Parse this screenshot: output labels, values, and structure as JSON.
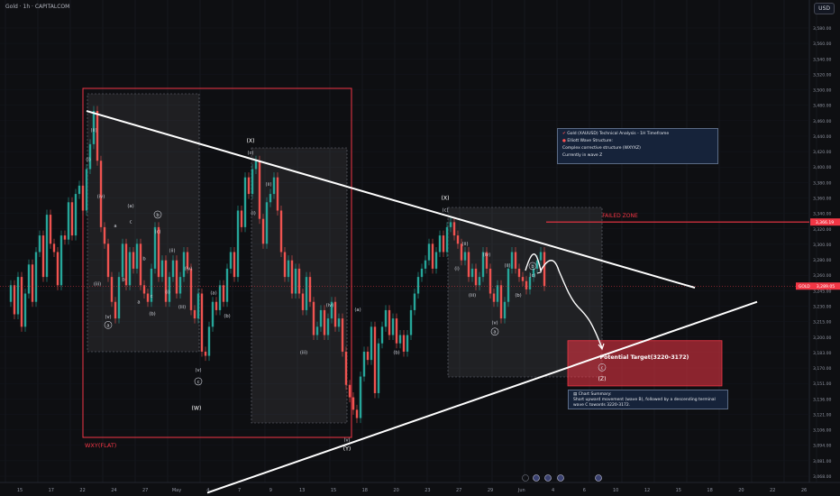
{
  "header": {
    "symbol_line": "Gold · 1h · CAPITALCOM",
    "currency_button": "USD"
  },
  "info_box": {
    "line1": "Gold (XAUUSD) Technical Analysis - 1H Timeframe",
    "line2": "Elliott Wave Structure:",
    "line3": "Complex corrective structure (WXYXZ)",
    "line4": "Currently in wave Z"
  },
  "summary_box": {
    "title": "Chart Summary:",
    "text": "Short upward movement (wave B), followed by a descending terminal wave C towards 3220-3172."
  },
  "colors": {
    "bg": "#0e0f12",
    "up": "#26a69a",
    "down": "#ef5350",
    "accent_red": "#f23645",
    "line": "#ffffff"
  },
  "chart_data": {
    "type": "candlestick",
    "title": "Gold · 1h · CAPITALCOM",
    "ylim": [
      3060,
      3600
    ],
    "y_ticks": [
      "3,580.00",
      "3,560.00",
      "3,540.00",
      "3,520.00",
      "3,500.00",
      "3,480.00",
      "3,460.00",
      "3,440.00",
      "3,420.00",
      "3,400.00",
      "3,380.00",
      "3,360.00",
      "3,340.00",
      "3,320.00",
      "3,300.00",
      "3,280.00",
      "3,260.00",
      "3,245.00",
      "3,230.00",
      "3,215.00",
      "3,200.00",
      "3,183.00",
      "3,170.00",
      "3,151.00",
      "3,136.00",
      "3,121.00",
      "3,106.00",
      "3,094.00",
      "3,081.00",
      "3,068.00"
    ],
    "x_ticks": [
      "15",
      "17",
      "22",
      "24",
      "27",
      "May",
      "4",
      "7",
      "9",
      "13",
      "15",
      "18",
      "20",
      "23",
      "27",
      "29",
      "Jun",
      "4",
      "6",
      "10",
      "12",
      "15",
      "18",
      "20",
      "22",
      "26"
    ],
    "price_labels": {
      "failed_zone": "3,366.19",
      "current": "3,289.05",
      "current_tag": "GOLD"
    },
    "price_path": [
      [
        0,
        3270
      ],
      [
        4,
        3290
      ],
      [
        8,
        3255
      ],
      [
        12,
        3300
      ],
      [
        16,
        3240
      ],
      [
        20,
        3280
      ],
      [
        24,
        3315
      ],
      [
        28,
        3270
      ],
      [
        32,
        3330
      ],
      [
        36,
        3350
      ],
      [
        40,
        3300
      ],
      [
        44,
        3375
      ],
      [
        48,
        3340
      ],
      [
        52,
        3330
      ],
      [
        56,
        3290
      ],
      [
        60,
        3350
      ],
      [
        64,
        3345
      ],
      [
        68,
        3390
      ],
      [
        72,
        3350
      ],
      [
        76,
        3400
      ],
      [
        80,
        3410
      ],
      [
        84,
        3380
      ],
      [
        88,
        3430
      ],
      [
        92,
        3460
      ],
      [
        96,
        3500
      ],
      [
        100,
        3440
      ],
      [
        104,
        3360
      ],
      [
        108,
        3340
      ],
      [
        112,
        3300
      ],
      [
        116,
        3270
      ],
      [
        120,
        3250
      ],
      [
        124,
        3300
      ],
      [
        128,
        3340
      ],
      [
        132,
        3290
      ],
      [
        136,
        3330
      ],
      [
        140,
        3310
      ],
      [
        144,
        3340
      ],
      [
        148,
        3290
      ],
      [
        152,
        3280
      ],
      [
        156,
        3270
      ],
      [
        160,
        3310
      ],
      [
        164,
        3360
      ],
      [
        168,
        3300
      ],
      [
        172,
        3320
      ],
      [
        176,
        3270
      ],
      [
        180,
        3300
      ],
      [
        184,
        3320
      ],
      [
        188,
        3280
      ],
      [
        192,
        3300
      ],
      [
        196,
        3330
      ],
      [
        200,
        3310
      ],
      [
        204,
        3260
      ],
      [
        208,
        3250
      ],
      [
        212,
        3280
      ],
      [
        216,
        3210
      ],
      [
        220,
        3205
      ],
      [
        224,
        3240
      ],
      [
        228,
        3270
      ],
      [
        232,
        3260
      ],
      [
        236,
        3290
      ],
      [
        240,
        3270
      ],
      [
        244,
        3310
      ],
      [
        248,
        3330
      ],
      [
        252,
        3300
      ],
      [
        256,
        3380
      ],
      [
        260,
        3360
      ],
      [
        264,
        3420
      ],
      [
        268,
        3400
      ],
      [
        272,
        3430
      ],
      [
        276,
        3440
      ],
      [
        280,
        3370
      ],
      [
        284,
        3340
      ],
      [
        288,
        3390
      ],
      [
        292,
        3400
      ],
      [
        296,
        3420
      ],
      [
        300,
        3380
      ],
      [
        304,
        3330
      ],
      [
        308,
        3300
      ],
      [
        312,
        3320
      ],
      [
        316,
        3280
      ],
      [
        320,
        3310
      ],
      [
        324,
        3280
      ],
      [
        328,
        3260
      ],
      [
        332,
        3300
      ],
      [
        336,
        3270
      ],
      [
        340,
        3230
      ],
      [
        344,
        3240
      ],
      [
        348,
        3260
      ],
      [
        352,
        3230
      ],
      [
        356,
        3250
      ],
      [
        360,
        3270
      ],
      [
        364,
        3240
      ],
      [
        368,
        3250
      ],
      [
        372,
        3210
      ],
      [
        376,
        3170
      ],
      [
        380,
        3155
      ],
      [
        384,
        3140
      ],
      [
        388,
        3130
      ],
      [
        392,
        3180
      ],
      [
        396,
        3210
      ],
      [
        400,
        3200
      ],
      [
        404,
        3240
      ],
      [
        408,
        3160
      ],
      [
        412,
        3220
      ],
      [
        416,
        3240
      ],
      [
        420,
        3260
      ],
      [
        424,
        3230
      ],
      [
        428,
        3250
      ],
      [
        432,
        3220
      ],
      [
        436,
        3230
      ],
      [
        440,
        3210
      ],
      [
        444,
        3230
      ],
      [
        448,
        3260
      ],
      [
        452,
        3280
      ],
      [
        456,
        3300
      ],
      [
        460,
        3310
      ],
      [
        464,
        3320
      ],
      [
        468,
        3340
      ],
      [
        472,
        3310
      ],
      [
        476,
        3330
      ],
      [
        480,
        3350
      ],
      [
        484,
        3330
      ],
      [
        488,
        3360
      ],
      [
        492,
        3366
      ],
      [
        496,
        3350
      ],
      [
        500,
        3340
      ],
      [
        504,
        3320
      ],
      [
        508,
        3330
      ],
      [
        512,
        3300
      ],
      [
        516,
        3310
      ],
      [
        520,
        3290
      ],
      [
        524,
        3300
      ],
      [
        528,
        3330
      ],
      [
        532,
        3310
      ],
      [
        536,
        3280
      ],
      [
        540,
        3270
      ],
      [
        544,
        3290
      ],
      [
        548,
        3250
      ],
      [
        552,
        3270
      ],
      [
        556,
        3310
      ],
      [
        560,
        3330
      ],
      [
        564,
        3310
      ],
      [
        568,
        3300
      ],
      [
        572,
        3295
      ],
      [
        576,
        3285
      ],
      [
        580,
        3300
      ],
      [
        584,
        3310
      ],
      [
        588,
        3320
      ],
      [
        592,
        3330
      ],
      [
        596,
        3289
      ]
    ],
    "annotations": {
      "trend_upper": [
        [
          96,
          3500
        ],
        [
          771,
          3287
        ]
      ],
      "trend_lower": [
        [
          230,
          3040
        ],
        [
          840,
          3270
        ]
      ],
      "wxy_box": {
        "label": "WXY(FLAT)"
      },
      "failed_zone": {
        "label": "FAILED ZONE",
        "price": 3366.19
      },
      "target_zone": {
        "label": "Potential Target(3220-3172)",
        "from": 3172,
        "to": 3220
      },
      "wave_labels": [
        {
          "t": "(ii)",
          "x": 104,
          "y": 3475
        },
        {
          "t": "(i)",
          "x": 98,
          "y": 3440
        },
        {
          "t": "(iv)",
          "x": 112,
          "y": 3395
        },
        {
          "t": "(iii)",
          "x": 108,
          "y": 3290
        },
        {
          "t": "(v)",
          "x": 120,
          "y": 3250
        },
        {
          "t": "a",
          "x": 120,
          "y": 3240
        },
        {
          "t": "a",
          "x": 128,
          "y": 3360
        },
        {
          "t": "b",
          "x": 137,
          "y": 3295
        },
        {
          "t": "c",
          "x": 145,
          "y": 3365
        },
        {
          "t": "(a)",
          "x": 145,
          "y": 3384
        },
        {
          "t": "b",
          "x": 160,
          "y": 3320
        },
        {
          "t": "a",
          "x": 154,
          "y": 3268
        },
        {
          "t": "c",
          "x": 168,
          "y": 3275
        },
        {
          "t": "(b)",
          "x": 169,
          "y": 3254
        },
        {
          "t": "b",
          "x": 175,
          "y": 3373
        },
        {
          "t": "(c)",
          "x": 175,
          "y": 3353
        },
        {
          "t": "(ii)",
          "x": 191,
          "y": 3330
        },
        {
          "t": "(i)",
          "x": 186,
          "y": 3280
        },
        {
          "t": "(iv)",
          "x": 209,
          "y": 3308
        },
        {
          "t": "(iii)",
          "x": 202,
          "y": 3262
        },
        {
          "t": "(v)",
          "x": 220,
          "y": 3186
        },
        {
          "t": "c",
          "x": 220,
          "y": 3172
        },
        {
          "t": "(W)",
          "x": 218,
          "y": 3140
        },
        {
          "t": "(a)",
          "x": 237,
          "y": 3279
        },
        {
          "t": "(b)",
          "x": 252,
          "y": 3251
        },
        {
          "t": "(X)",
          "x": 278,
          "y": 3462
        },
        {
          "t": "(c)",
          "x": 278,
          "y": 3448
        },
        {
          "t": "(ii)",
          "x": 298,
          "y": 3410
        },
        {
          "t": "(i)",
          "x": 281,
          "y": 3375
        },
        {
          "t": "(iv)",
          "x": 366,
          "y": 3264
        },
        {
          "t": "(iii)",
          "x": 337,
          "y": 3207
        },
        {
          "t": "(v)",
          "x": 385,
          "y": 3102
        },
        {
          "t": "(Y)",
          "x": 385,
          "y": 3091
        },
        {
          "t": "(a)",
          "x": 397,
          "y": 3259
        },
        {
          "t": "(b)",
          "x": 440,
          "y": 3207
        },
        {
          "t": "(X)",
          "x": 494,
          "y": 3393
        },
        {
          "t": "(c)",
          "x": 494,
          "y": 3379
        },
        {
          "t": "(ii)",
          "x": 516,
          "y": 3338
        },
        {
          "t": "(i)",
          "x": 507,
          "y": 3308
        },
        {
          "t": "(iv)",
          "x": 540,
          "y": 3325
        },
        {
          "t": "(iii)",
          "x": 524,
          "y": 3276
        },
        {
          "t": "(ii)",
          "x": 563,
          "y": 3312
        },
        {
          "t": "(v)",
          "x": 549,
          "y": 3243
        },
        {
          "t": "a",
          "x": 549,
          "y": 3232
        },
        {
          "t": "b",
          "x": 591,
          "y": 3311
        },
        {
          "t": "(c)",
          "x": 591,
          "y": 3300
        },
        {
          "t": "(b)",
          "x": 575,
          "y": 3276
        },
        {
          "t": "c",
          "x": 668,
          "y": 3189
        },
        {
          "t": "(Z)",
          "x": 668,
          "y": 3175
        }
      ]
    }
  }
}
